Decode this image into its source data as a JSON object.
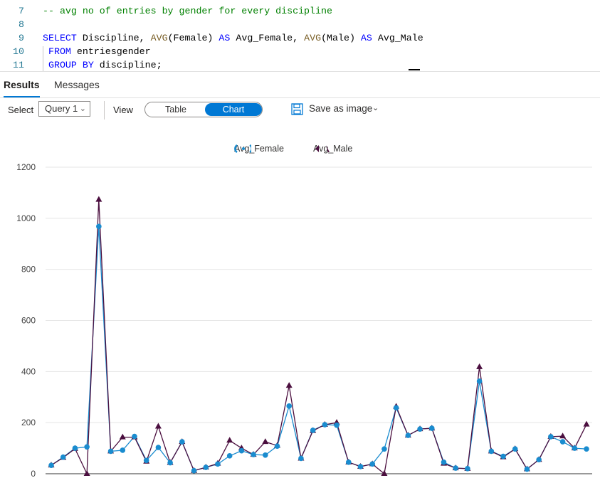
{
  "editor": {
    "lines": [
      {
        "num": "7",
        "tokens": [
          {
            "t": "-- avg no of entries by gender for every discipline",
            "c": "c-com"
          }
        ]
      },
      {
        "num": "8",
        "tokens": []
      },
      {
        "num": "9",
        "tokens": [
          {
            "t": "SELECT",
            "c": "c-kw"
          },
          {
            "t": " Discipline, ",
            "c": "c-id"
          },
          {
            "t": "AVG",
            "c": "c-fn"
          },
          {
            "t": "(Female) ",
            "c": "c-id"
          },
          {
            "t": "AS",
            "c": "c-kw"
          },
          {
            "t": " Avg_Female, ",
            "c": "c-id"
          },
          {
            "t": "AVG",
            "c": "c-fn"
          },
          {
            "t": "(Male) ",
            "c": "c-id"
          },
          {
            "t": "AS",
            "c": "c-kw"
          },
          {
            "t": " Avg_Male",
            "c": "c-id"
          }
        ]
      },
      {
        "num": "10",
        "tokens": [
          {
            "t": " FROM",
            "c": "c-kw"
          },
          {
            "t": " entriesgender",
            "c": "c-id"
          }
        ]
      },
      {
        "num": "11",
        "tokens": [
          {
            "t": " GROUP BY",
            "c": "c-kw"
          },
          {
            "t": " discipline;",
            "c": "c-id"
          }
        ]
      }
    ]
  },
  "tabs": {
    "results": "Results",
    "messages": "Messages"
  },
  "toolbar": {
    "select_label": "Select",
    "query_value": "Query 1",
    "view_label": "View",
    "table_option": "Table",
    "chart_option": "Chart",
    "save_label": "Save as image"
  },
  "colors": {
    "female": "#1a8ccf",
    "male": "#4b0f3f",
    "accent": "#0078d4"
  },
  "chart_data": {
    "type": "line",
    "title": "",
    "xlabel": "",
    "ylabel": "",
    "ylim": [
      0,
      1200
    ],
    "yticks": [
      "0",
      "200",
      "400",
      "600",
      "800",
      "1000",
      "1200"
    ],
    "grid": true,
    "legend_position": "top-center",
    "series": [
      {
        "name": "Avg_Female",
        "marker": "circle",
        "values": [
          33,
          65,
          100,
          105,
          968,
          88,
          92,
          146,
          52,
          103,
          43,
          125,
          12,
          25,
          38,
          70,
          90,
          75,
          73,
          108,
          265,
          60,
          170,
          192,
          190,
          45,
          28,
          38,
          97,
          258,
          150,
          175,
          178,
          45,
          22,
          20,
          362,
          88,
          68,
          97,
          18,
          55,
          145,
          125,
          100,
          97
        ]
      },
      {
        "name": "Avg_Male",
        "marker": "triangle",
        "values": [
          33,
          63,
          98,
          0,
          1073,
          88,
          143,
          143,
          48,
          185,
          43,
          125,
          12,
          25,
          40,
          130,
          100,
          75,
          125,
          110,
          345,
          60,
          168,
          192,
          200,
          45,
          28,
          38,
          0,
          263,
          150,
          175,
          178,
          40,
          22,
          20,
          418,
          88,
          65,
          97,
          18,
          55,
          145,
          147,
          100,
          193
        ]
      }
    ]
  }
}
